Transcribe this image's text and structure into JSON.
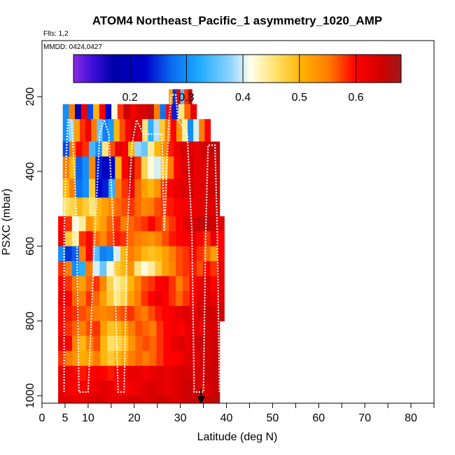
{
  "chart_data": {
    "type": "heatmap",
    "title": "ATOM4 Northeast_Pacific_1 asymmetry_1020_AMP",
    "flights_label": "Flts: 1,2",
    "dates_label": "MMDD: 0424,0427",
    "xlabel": "Latitude (deg N)",
    "ylabel": "PSXC (mbar)",
    "xlim": [
      0,
      85
    ],
    "ylim": [
      1020,
      50
    ],
    "x_ticks": [
      0,
      5,
      10,
      20,
      30,
      40,
      50,
      60,
      70,
      80
    ],
    "x_tick_labels": [
      "0",
      "5",
      "10",
      "20",
      "30",
      "40",
      "50",
      "60",
      "70",
      "80"
    ],
    "x_minor_ticks": [
      15,
      25,
      35,
      45,
      55,
      65,
      75,
      85
    ],
    "y_ticks": [
      200,
      400,
      600,
      800,
      1000
    ],
    "y_tick_labels": [
      "200",
      "400",
      "600",
      "800",
      "1000"
    ],
    "colorbar": {
      "range": [
        0.1,
        0.68
      ],
      "ticks": [
        0.2,
        0.3,
        0.4,
        0.5,
        0.6
      ],
      "tick_labels": [
        "0.2",
        "0.3",
        "0.4",
        "0.5",
        "0.6"
      ]
    },
    "arrow_marker_latitude": 34.5,
    "flight_track": [
      [
        4.8,
        990
      ],
      [
        4.8,
        570
      ],
      [
        5.2,
        380
      ],
      [
        5.6,
        262
      ],
      [
        6.4,
        262
      ],
      [
        7.5,
        520
      ],
      [
        8.0,
        990
      ],
      [
        10.0,
        990
      ],
      [
        11.5,
        560
      ],
      [
        12.5,
        300
      ],
      [
        13.5,
        262
      ],
      [
        14.5,
        300
      ],
      [
        15.5,
        560
      ],
      [
        16.5,
        990
      ],
      [
        17.8,
        990
      ],
      [
        18.5,
        560
      ],
      [
        19.5,
        330
      ],
      [
        20.5,
        262
      ],
      [
        22.0,
        300
      ],
      [
        26.0,
        300
      ],
      [
        26.5,
        560
      ],
      [
        27.5,
        270
      ],
      [
        28.0,
        195
      ],
      [
        29.0,
        195
      ],
      [
        29.5,
        262
      ],
      [
        31.5,
        300
      ],
      [
        32.5,
        560
      ],
      [
        33.0,
        990
      ],
      [
        35.0,
        990
      ],
      [
        35.5,
        560
      ],
      [
        36.0,
        330
      ],
      [
        37.5,
        330
      ],
      [
        38.0,
        560
      ],
      [
        38.5,
        990
      ]
    ],
    "series": [
      {
        "name": "p180-220",
        "p": [
          180,
          220
        ],
        "lat_range": [
          27.5,
          32.5
        ],
        "values": [
          0.52,
          0.25,
          0.62,
          0.35,
          0.58,
          0.66
        ]
      },
      {
        "name": "p220-260",
        "p": [
          220,
          260
        ],
        "lat_range": [
          4.5,
          33.5
        ],
        "values": [
          0.3,
          0.55,
          0.18,
          0.62,
          0.26,
          0.5,
          0.6,
          0.22,
          0.42,
          0.58,
          0.65,
          0.61,
          0.63,
          0.64,
          0.66,
          0.55,
          0.28,
          0.6,
          0.24,
          0.45,
          0.56,
          0.62
        ]
      },
      {
        "name": "p260-320",
        "p": [
          260,
          320
        ],
        "lat_range": [
          4.5,
          36.5
        ],
        "values": [
          0.3,
          0.38,
          0.52,
          0.58,
          0.61,
          0.55,
          0.36,
          0.29,
          0.31,
          0.5,
          0.57,
          0.6,
          0.64,
          0.62,
          0.45,
          0.33,
          0.39,
          0.48,
          0.55,
          0.6,
          0.53,
          0.44,
          0.3,
          0.4,
          0.55,
          0.6
        ]
      },
      {
        "name": "p320-360",
        "p": [
          320,
          360
        ],
        "lat_range": [
          4.5,
          38.5
        ],
        "values": [
          0.26,
          0.55,
          0.6,
          0.58,
          0.34,
          0.3,
          0.45,
          0.57,
          0.62,
          0.61,
          0.5,
          0.38,
          0.36,
          0.44,
          0.5,
          0.54,
          0.59,
          0.62,
          0.64,
          0.63,
          0.62,
          0.64,
          0.65,
          0.66
        ]
      },
      {
        "name": "p360-420",
        "p": [
          360,
          420
        ],
        "lat_range": [
          4.5,
          38.5
        ],
        "values": [
          0.55,
          0.5,
          0.27,
          0.3,
          0.54,
          0.24,
          0.21,
          0.23,
          0.5,
          0.6,
          0.65,
          0.58,
          0.47,
          0.42,
          0.4,
          0.48,
          0.55,
          0.6,
          0.63,
          0.64,
          0.62,
          0.63,
          0.64,
          0.65
        ]
      },
      {
        "name": "p420-470",
        "p": [
          420,
          470
        ],
        "lat_range": [
          4.5,
          38.5
        ],
        "values": [
          0.5,
          0.55,
          0.28,
          0.3,
          0.48,
          0.22,
          0.24,
          0.33,
          0.55,
          0.58,
          0.62,
          0.56,
          0.52,
          0.5,
          0.53,
          0.58,
          0.6,
          0.62,
          0.63,
          0.64,
          0.62,
          0.63,
          0.64,
          0.65
        ]
      },
      {
        "name": "p470-520",
        "p": [
          470,
          520
        ],
        "lat_range": [
          4.5,
          38.5
        ],
        "values": [
          0.46,
          0.47,
          0.5,
          0.48,
          0.45,
          0.5,
          0.52,
          0.54,
          0.56,
          0.57,
          0.58,
          0.56,
          0.54,
          0.55,
          0.57,
          0.58,
          0.59,
          0.6,
          0.61,
          0.62,
          0.62,
          0.63,
          0.63,
          0.64
        ]
      },
      {
        "name": "p520-560",
        "p": [
          520,
          560
        ],
        "lat_range": [
          3.5,
          39.5
        ],
        "values": [
          0.6,
          0.58,
          0.42,
          0.44,
          0.53,
          0.5,
          0.52,
          0.56,
          0.58,
          0.55,
          0.56,
          0.57,
          0.58,
          0.6,
          0.58,
          0.56,
          0.58,
          0.6,
          0.63,
          0.64,
          0.65,
          0.66,
          0.64,
          0.63
        ]
      },
      {
        "name": "p560-600",
        "p": [
          560,
          600
        ],
        "lat_range": [
          3.5,
          39.5
        ],
        "values": [
          0.62,
          0.48,
          0.44,
          0.58,
          0.6,
          0.56,
          0.54,
          0.57,
          0.59,
          0.58,
          0.56,
          0.55,
          0.54,
          0.53,
          0.55,
          0.57,
          0.59,
          0.6,
          0.61,
          0.62,
          0.6,
          0.58,
          0.62,
          0.6
        ]
      },
      {
        "name": "p600-640",
        "p": [
          600,
          640
        ],
        "lat_range": [
          3.5,
          39.5
        ],
        "values": [
          0.3,
          0.25,
          0.27,
          0.55,
          0.6,
          0.35,
          0.29,
          0.3,
          0.4,
          0.5,
          0.55,
          0.53,
          0.5,
          0.49,
          0.5,
          0.52,
          0.55,
          0.57,
          0.58,
          0.6,
          0.58,
          0.56,
          0.52,
          0.6
        ]
      },
      {
        "name": "p640-680",
        "p": [
          640,
          680
        ],
        "lat_range": [
          3.5,
          39.5
        ],
        "values": [
          0.58,
          0.55,
          0.3,
          0.33,
          0.55,
          0.4,
          0.36,
          0.42,
          0.48,
          0.5,
          0.53,
          0.45,
          0.42,
          0.44,
          0.48,
          0.52,
          0.54,
          0.57,
          0.58,
          0.59,
          0.57,
          0.6,
          0.58,
          0.62
        ]
      },
      {
        "name": "p680-720",
        "p": [
          680,
          720
        ],
        "lat_range": [
          3.5,
          39.5
        ],
        "values": [
          0.6,
          0.58,
          0.55,
          0.52,
          0.56,
          0.58,
          0.54,
          0.47,
          0.44,
          0.46,
          0.5,
          0.54,
          0.57,
          0.58,
          0.6,
          0.61,
          0.58,
          0.55,
          0.57,
          0.6,
          0.62,
          0.63,
          0.6,
          0.62
        ]
      },
      {
        "name": "p720-760",
        "p": [
          720,
          760
        ],
        "lat_range": [
          3.5,
          39.5
        ],
        "values": [
          0.62,
          0.6,
          0.56,
          0.55,
          0.58,
          0.56,
          0.52,
          0.48,
          0.45,
          0.47,
          0.52,
          0.55,
          0.58,
          0.6,
          0.62,
          0.6,
          0.58,
          0.56,
          0.58,
          0.6,
          0.63,
          0.64,
          0.62,
          0.63
        ]
      },
      {
        "name": "p760-800",
        "p": [
          760,
          800
        ],
        "lat_range": [
          3.5,
          39.5
        ],
        "values": [
          0.6,
          0.59,
          0.58,
          0.57,
          0.56,
          0.55,
          0.54,
          0.55,
          0.56,
          0.57,
          0.58,
          0.56,
          0.55,
          0.57,
          0.59,
          0.6,
          0.61,
          0.62,
          0.63,
          0.62,
          0.64,
          0.65,
          0.64,
          0.65
        ]
      },
      {
        "name": "p800-840",
        "p": [
          800,
          840
        ],
        "lat_range": [
          3.5,
          38.5
        ],
        "values": [
          0.6,
          0.58,
          0.56,
          0.55,
          0.57,
          0.58,
          0.52,
          0.49,
          0.5,
          0.52,
          0.55,
          0.57,
          0.56,
          0.55,
          0.58,
          0.6,
          0.61,
          0.6,
          0.62,
          0.63,
          0.62,
          0.64,
          0.64
        ]
      },
      {
        "name": "p840-880",
        "p": [
          840,
          880
        ],
        "lat_range": [
          3.5,
          38.5
        ],
        "values": [
          0.62,
          0.6,
          0.54,
          0.5,
          0.55,
          0.57,
          0.5,
          0.46,
          0.47,
          0.49,
          0.53,
          0.56,
          0.57,
          0.56,
          0.58,
          0.6,
          0.62,
          0.63,
          0.62,
          0.64,
          0.65,
          0.64,
          0.65
        ]
      },
      {
        "name": "p880-920",
        "p": [
          880,
          920
        ],
        "lat_range": [
          3.5,
          38.5
        ],
        "values": [
          0.58,
          0.55,
          0.53,
          0.51,
          0.52,
          0.55,
          0.5,
          0.48,
          0.5,
          0.52,
          0.55,
          0.56,
          0.55,
          0.56,
          0.58,
          0.6,
          0.6,
          0.61,
          0.63,
          0.62,
          0.64,
          0.64,
          0.65
        ]
      },
      {
        "name": "p920-960",
        "p": [
          920,
          960
        ],
        "lat_range": [
          3.5,
          38.5
        ],
        "values": [
          0.62,
          0.62,
          0.6,
          0.59,
          0.6,
          0.61,
          0.6,
          0.59,
          0.6,
          0.61,
          0.62,
          0.62,
          0.61,
          0.62,
          0.63,
          0.62,
          0.63,
          0.64,
          0.64,
          0.63,
          0.64,
          0.65,
          0.65
        ]
      },
      {
        "name": "p960-1000",
        "p": [
          960,
          1000
        ],
        "lat_range": [
          3.5,
          38.5
        ],
        "values": [
          0.62,
          0.61,
          0.6,
          0.6,
          0.61,
          0.62,
          0.63,
          0.62,
          0.6,
          0.6,
          0.61,
          0.62,
          0.63,
          0.64,
          0.63,
          0.62,
          0.63,
          0.64,
          0.65,
          0.64,
          0.63,
          0.64,
          0.65
        ]
      },
      {
        "name": "p1000-1020",
        "p": [
          1000,
          1020
        ],
        "lat_range": [
          3.5,
          38.5
        ],
        "values": [
          0.63,
          0.63,
          0.62,
          0.62,
          0.63,
          0.64,
          0.63,
          0.62,
          0.62,
          0.63,
          0.64,
          0.64,
          0.63,
          0.64,
          0.65,
          0.64,
          0.63,
          0.64,
          0.65,
          0.65,
          0.64,
          0.65,
          0.66
        ]
      }
    ]
  }
}
